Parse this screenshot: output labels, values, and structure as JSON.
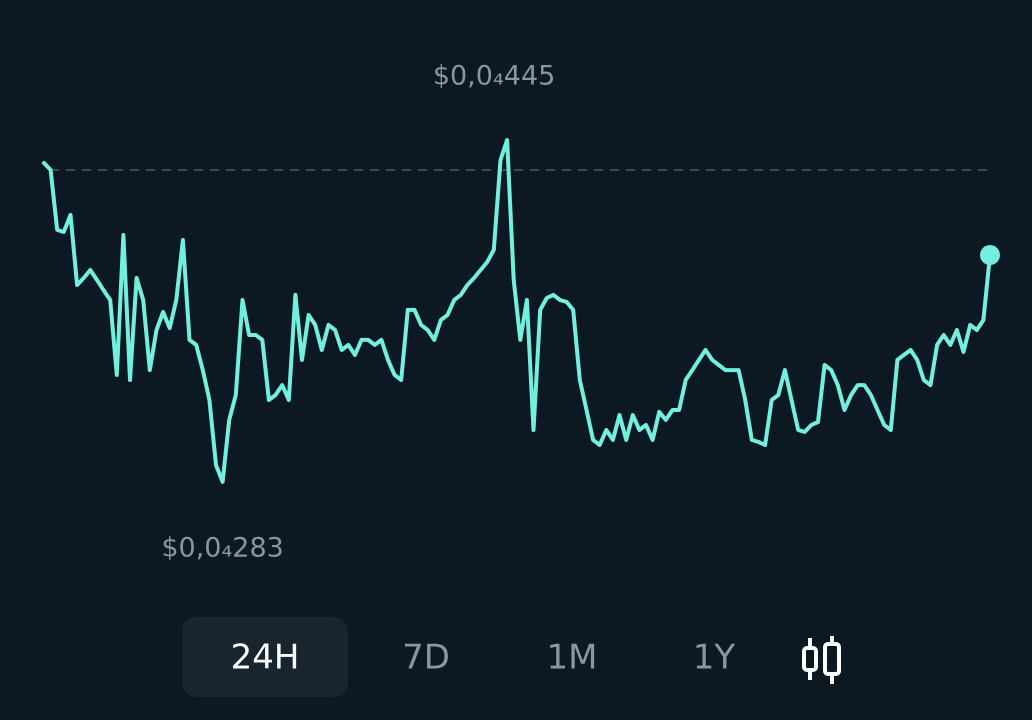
{
  "chart_data": {
    "type": "line",
    "color": "#72efde",
    "values": [
      4.341e-05,
      4.308e-05,
      4.024e-05,
      4.014e-05,
      4.095e-05,
      3.763e-05,
      3.796e-05,
      3.834e-05,
      3.787e-05,
      3.739e-05,
      3.692e-05,
      3.337e-05,
      4e-05,
      3.313e-05,
      3.796e-05,
      3.692e-05,
      3.36e-05,
      3.55e-05,
      3.635e-05,
      3.559e-05,
      3.692e-05,
      3.976e-05,
      3.503e-05,
      3.479e-05,
      3.36e-05,
      3.218e-05,
      2.91e-05,
      2.83e-05,
      3.124e-05,
      3.242e-05,
      3.692e-05,
      3.526e-05,
      3.526e-05,
      3.503e-05,
      3.218e-05,
      3.242e-05,
      3.289e-05,
      3.218e-05,
      3.716e-05,
      3.408e-05,
      3.621e-05,
      3.574e-05,
      3.455e-05,
      3.574e-05,
      3.55e-05,
      3.455e-05,
      3.479e-05,
      3.432e-05,
      3.503e-05,
      3.503e-05,
      3.479e-05,
      3.503e-05,
      3.408e-05,
      3.337e-05,
      3.313e-05,
      3.645e-05,
      3.645e-05,
      3.574e-05,
      3.55e-05,
      3.503e-05,
      3.597e-05,
      3.621e-05,
      3.692e-05,
      3.716e-05,
      3.763e-05,
      3.796e-05,
      3.834e-05,
      3.872e-05,
      3.929e-05,
      4.355e-05,
      4.45e-05,
      3.787e-05,
      3.503e-05,
      3.692e-05,
      3.076e-05,
      3.645e-05,
      3.702e-05,
      3.716e-05,
      3.692e-05,
      3.683e-05,
      3.645e-05,
      3.313e-05,
      3.171e-05,
      3.029e-05,
      3.005e-05,
      3.076e-05,
      3.029e-05,
      3.147e-05,
      3.029e-05,
      3.147e-05,
      3.076e-05,
      3.1e-05,
      3.029e-05,
      3.162e-05,
      3.124e-05,
      3.171e-05,
      3.171e-05,
      3.313e-05,
      3.36e-05,
      3.408e-05,
      3.455e-05,
      3.408e-05,
      3.384e-05,
      3.36e-05,
      3.36e-05,
      3.36e-05,
      3.218e-05,
      3.029e-05,
      3.019e-05,
      3.005e-05,
      3.218e-05,
      3.242e-05,
      3.36e-05,
      3.218e-05,
      3.076e-05,
      3.067e-05,
      3.1e-05,
      3.114e-05,
      3.384e-05,
      3.36e-05,
      3.289e-05,
      3.171e-05,
      3.242e-05,
      3.289e-05,
      3.289e-05,
      3.242e-05,
      3.171e-05,
      3.1e-05,
      3.076e-05,
      3.408e-05,
      3.432e-05,
      3.455e-05,
      3.408e-05,
      3.313e-05,
      3.289e-05,
      3.479e-05,
      3.526e-05,
      3.479e-05,
      3.55e-05,
      3.446e-05,
      3.574e-05,
      3.55e-05,
      3.597e-05,
      3.905e-05
    ],
    "ylim": [
      2.6e-05,
      4.6e-05
    ],
    "reference_value": 4.308e-05,
    "max_label": {
      "value": 4.45e-05,
      "label": "$0,0₄445"
    },
    "min_label": {
      "value": 2.83e-05,
      "label": "$0,0₄283"
    }
  },
  "timeframes": [
    "24H",
    "7D",
    "1M",
    "1Y"
  ],
  "selected_timeframe": "24H"
}
